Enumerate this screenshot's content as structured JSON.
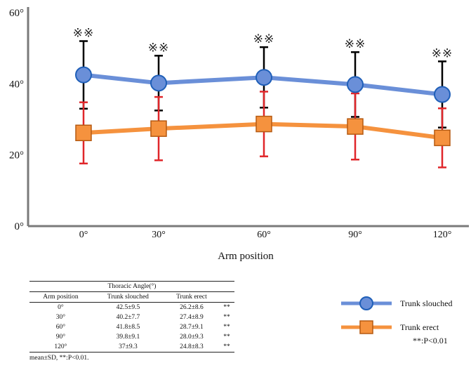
{
  "chart_data": {
    "type": "line",
    "title": "",
    "xlabel": "Arm position",
    "ylabel": "",
    "categories": [
      "0°",
      "30°",
      "60°",
      "90°",
      "120°"
    ],
    "y_ticks": [
      "0°",
      "20°",
      "40°",
      "60°"
    ],
    "ylim": [
      0,
      60
    ],
    "grid": false,
    "series": [
      {
        "name": "Trunk slouched",
        "color": "#6a8fd8",
        "marker": "circle",
        "values": [
          42.5,
          40.2,
          41.8,
          39.8,
          37
        ],
        "sd": [
          9.5,
          7.7,
          8.5,
          9.1,
          9.3
        ],
        "error_color": "#000000"
      },
      {
        "name": "Trunk erect",
        "color": "#f5923e",
        "marker": "square",
        "values": [
          26.2,
          27.4,
          28.7,
          28.0,
          24.8
        ],
        "sd": [
          8.6,
          8.9,
          9.1,
          9.3,
          8.3
        ],
        "error_color": "#e0262a"
      }
    ],
    "annotations": [
      "※※",
      "※※",
      "※※",
      "※※",
      "※※"
    ],
    "legend": {
      "placement": "bottom-right",
      "note": "**:P<0.01"
    }
  },
  "table": {
    "title": "Thoracic Angle(°)",
    "headers": [
      "Arm position",
      "Trunk slouched",
      "Trunk erect",
      ""
    ],
    "rows": [
      [
        "0°",
        "42.5±9.5",
        "26.2±8.6",
        "**"
      ],
      [
        "30°",
        "40.2±7.7",
        "27.4±8.9",
        "**"
      ],
      [
        "60°",
        "41.8±8.5",
        "28.7±9.1",
        "**"
      ],
      [
        "90°",
        "39.8±9.1",
        "28.0±9.3",
        "**"
      ],
      [
        "120°",
        "37±9.3",
        "24.8±8.3",
        "**"
      ]
    ],
    "footnote": "mean±SD,   **:P<0.01."
  }
}
